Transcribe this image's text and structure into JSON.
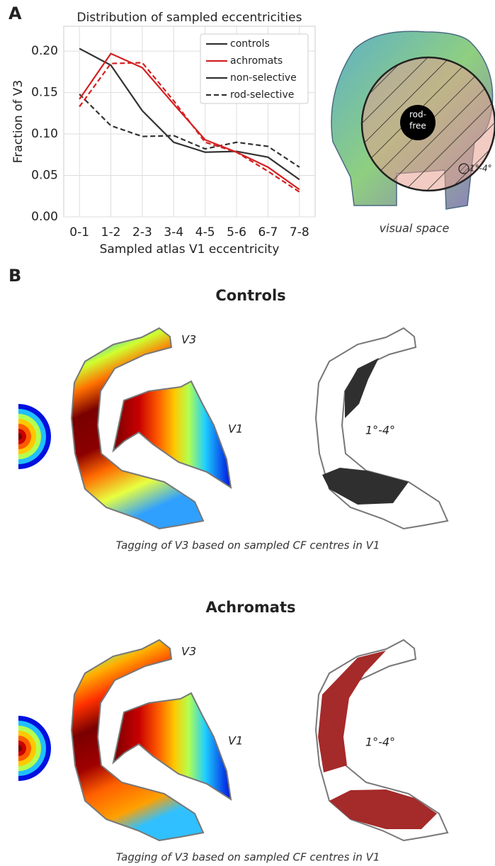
{
  "chart_data": {
    "type": "line",
    "title": "Distribution of sampled eccentricities",
    "x_label": "Sampled atlas V1 eccentricity",
    "y_label": "Fraction of V3",
    "categories": [
      "0-1",
      "1-2",
      "2-3",
      "3-4",
      "4-5",
      "5-6",
      "6-7",
      "7-8"
    ],
    "series": [
      {
        "color": "#333333",
        "dash": false,
        "values": [
          0.203,
          0.183,
          0.128,
          0.09,
          0.078,
          0.079,
          0.072,
          0.045
        ]
      },
      {
        "color": "#333333",
        "dash": true,
        "values": [
          0.148,
          0.11,
          0.097,
          0.098,
          0.082,
          0.09,
          0.085,
          0.06
        ]
      },
      {
        "color": "#d42020",
        "dash": false,
        "values": [
          0.142,
          0.197,
          0.18,
          0.136,
          0.093,
          0.078,
          0.06,
          0.033
        ]
      },
      {
        "color": "#d42020",
        "dash": true,
        "values": [
          0.133,
          0.185,
          0.186,
          0.14,
          0.09,
          0.078,
          0.055,
          0.03
        ]
      }
    ],
    "legend": [
      {
        "label": "controls",
        "color": "#333333",
        "dash": false
      },
      {
        "label": "achromats",
        "color": "#d42020",
        "dash": false
      },
      {
        "label": "non-selective",
        "color": "#333333",
        "dash": false
      },
      {
        "label": "rod-selective",
        "color": "#333333",
        "dash": true
      }
    ],
    "ylim": [
      0,
      0.23
    ],
    "yticks": [
      {
        "value": 0,
        "label": "0.00"
      },
      0.05,
      {
        "value": 0.1,
        "label": "0.10"
      },
      0.15,
      {
        "value": 0.2,
        "label": "0.20"
      }
    ],
    "grid": true
  },
  "panel_a": {
    "letter": "A",
    "rod_free": [
      "rod-",
      "free"
    ],
    "range": "1°-4°",
    "caption": "visual space"
  },
  "panel_b": {
    "letter": "B",
    "groups": [
      {
        "title": "Controls",
        "v3": "V3",
        "v1": "V1",
        "range": "1°-4°",
        "caption": "Tagging of V3 based on sampled CF centres in V1"
      },
      {
        "title": "Achromats",
        "v3": "V3",
        "v1": "V1",
        "range": "1°-4°",
        "caption": "Tagging of V3 based on sampled CF centres in V1"
      }
    ]
  }
}
